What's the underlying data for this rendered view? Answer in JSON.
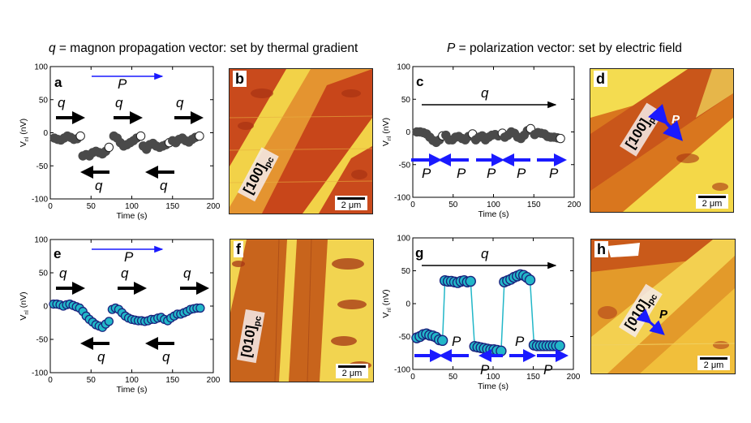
{
  "headers": {
    "q": {
      "symbol": "q",
      "text": " = magnon propagation vector: set by thermal gradient"
    },
    "p": {
      "symbol": "P",
      "text": " = polarization vector: set by electric field"
    }
  },
  "axes_common": {
    "xlabel": "Time (s)",
    "ylabel": "V",
    "ylabel_sub": "nl",
    "ylabel_unit": " (nV)",
    "xticks": [
      "0",
      "50",
      "100",
      "150",
      "200"
    ],
    "yticks": [
      "100",
      "50",
      "0",
      "-50",
      "-100"
    ]
  },
  "colors": {
    "dark_series": "#4a4a4a",
    "cyan_series": "#22b7c8",
    "cyan_edge": "#1a237e",
    "blue_arrow": "#1a1aff",
    "black_arrow": "#000000",
    "micro_bright": "#f6e24a",
    "micro_dark": "#c9461a"
  },
  "panel_labels": {
    "a": "a",
    "b": "b",
    "c": "c",
    "d": "d",
    "e": "e",
    "f": "f",
    "g": "g",
    "h": "h"
  },
  "vector_labels": {
    "q": "q",
    "P": "P"
  },
  "micrographs": {
    "b": {
      "orientation": "[100]",
      "sub": "pc",
      "scale": "2 μm"
    },
    "d": {
      "orientation": "[100]",
      "sub": "pc",
      "scale": "2 μm",
      "p_label": "P"
    },
    "f": {
      "orientation": "[010]",
      "sub": "pc",
      "scale": "2 μm"
    },
    "h": {
      "orientation": "[010]",
      "sub": "pc",
      "scale": "2 μm",
      "p_label": "P"
    }
  },
  "chart_data": [
    {
      "panel": "a",
      "type": "scatter",
      "xlabel": "Time (s)",
      "ylabel": "Vnl (nV)",
      "xlim": [
        0,
        200
      ],
      "ylim": [
        -100,
        100
      ],
      "segments": [
        [
          [
            5,
            -8
          ],
          [
            9,
            -10
          ],
          [
            13,
            -11
          ],
          [
            17,
            -8
          ],
          [
            21,
            -5
          ],
          [
            25,
            -7
          ],
          [
            29,
            -10
          ],
          [
            33,
            -9
          ],
          [
            37,
            -5
          ]
        ],
        [
          [
            40,
            -35
          ],
          [
            44,
            -33
          ],
          [
            48,
            -35
          ],
          [
            52,
            -30
          ],
          [
            56,
            -28
          ],
          [
            60,
            -30
          ],
          [
            64,
            -32
          ],
          [
            68,
            -28
          ],
          [
            72,
            -22
          ]
        ],
        [
          [
            78,
            -5
          ],
          [
            82,
            -8
          ],
          [
            86,
            -15
          ],
          [
            90,
            -20
          ],
          [
            94,
            -18
          ],
          [
            98,
            -15
          ],
          [
            102,
            -12
          ],
          [
            106,
            -8
          ],
          [
            111,
            -5
          ]
        ],
        [
          [
            114,
            -20
          ],
          [
            118,
            -25
          ],
          [
            122,
            -18
          ],
          [
            126,
            -16
          ],
          [
            130,
            -20
          ],
          [
            134,
            -22
          ],
          [
            138,
            -20
          ],
          [
            142,
            -18
          ],
          [
            146,
            -15
          ]
        ],
        [
          [
            150,
            -12
          ],
          [
            154,
            -15
          ],
          [
            158,
            -10
          ],
          [
            162,
            -8
          ],
          [
            166,
            -12
          ],
          [
            170,
            -14
          ],
          [
            174,
            -10
          ],
          [
            178,
            -7
          ],
          [
            183,
            -5
          ]
        ]
      ]
    },
    {
      "panel": "c",
      "type": "scatter",
      "xlabel": "Time (s)",
      "ylabel": "Vnl (nV)",
      "xlim": [
        0,
        200
      ],
      "ylim": [
        -100,
        100
      ],
      "segments": [
        [
          [
            5,
            0
          ],
          [
            9,
            0
          ],
          [
            13,
            -1
          ],
          [
            17,
            -3
          ],
          [
            21,
            -8
          ],
          [
            25,
            -13
          ],
          [
            29,
            -16
          ],
          [
            33,
            -12
          ],
          [
            37,
            -6
          ]
        ],
        [
          [
            41,
            -5
          ],
          [
            45,
            -12
          ],
          [
            49,
            -12
          ],
          [
            53,
            -8
          ],
          [
            57,
            -7
          ],
          [
            61,
            -10
          ],
          [
            65,
            -12
          ],
          [
            69,
            -7
          ],
          [
            74,
            -3
          ]
        ],
        [
          [
            78,
            -12
          ],
          [
            82,
            -8
          ],
          [
            86,
            -6
          ],
          [
            90,
            -12
          ],
          [
            94,
            -8
          ],
          [
            98,
            -5
          ],
          [
            102,
            -4
          ],
          [
            106,
            -6
          ],
          [
            111,
            -2
          ]
        ],
        [
          [
            114,
            -8
          ],
          [
            118,
            -5
          ],
          [
            122,
            0
          ],
          [
            126,
            -2
          ],
          [
            130,
            -8
          ],
          [
            134,
            -10
          ],
          [
            138,
            -5
          ],
          [
            142,
            2
          ],
          [
            146,
            5
          ]
        ],
        [
          [
            151,
            -4
          ],
          [
            155,
            -1
          ],
          [
            159,
            -2
          ],
          [
            163,
            -3
          ],
          [
            167,
            -7
          ],
          [
            171,
            -8
          ],
          [
            175,
            -8
          ],
          [
            179,
            -9
          ],
          [
            183,
            -10
          ]
        ]
      ]
    },
    {
      "panel": "e",
      "type": "scatter",
      "xlabel": "Time (s)",
      "ylabel": "Vnl (nV)",
      "xlim": [
        0,
        200
      ],
      "ylim": [
        -100,
        100
      ],
      "segments": [
        [
          [
            4,
            3
          ],
          [
            8,
            3
          ],
          [
            12,
            2
          ],
          [
            16,
            0
          ],
          [
            20,
            2
          ],
          [
            24,
            3
          ],
          [
            28,
            1
          ],
          [
            32,
            -1
          ],
          [
            36,
            -3
          ],
          [
            40,
            -8
          ],
          [
            44,
            -15
          ],
          [
            48,
            -20
          ],
          [
            52,
            -24
          ],
          [
            56,
            -28
          ],
          [
            60,
            -30
          ],
          [
            64,
            -32
          ],
          [
            68,
            -27
          ],
          [
            72,
            -23
          ]
        ],
        [
          [
            76,
            -5
          ],
          [
            80,
            -3
          ],
          [
            84,
            -5
          ],
          [
            88,
            -10
          ],
          [
            92,
            -15
          ],
          [
            96,
            -18
          ],
          [
            100,
            -20
          ],
          [
            104,
            -21
          ],
          [
            108,
            -22
          ],
          [
            112,
            -22
          ],
          [
            116,
            -23
          ],
          [
            120,
            -22
          ],
          [
            124,
            -20
          ],
          [
            128,
            -20
          ],
          [
            132,
            -18
          ],
          [
            136,
            -17
          ],
          [
            140,
            -20
          ],
          [
            144,
            -22
          ],
          [
            148,
            -18
          ],
          [
            152,
            -15
          ],
          [
            156,
            -12
          ],
          [
            160,
            -12
          ],
          [
            164,
            -10
          ],
          [
            168,
            -8
          ],
          [
            172,
            -5
          ],
          [
            176,
            -4
          ],
          [
            180,
            -3
          ],
          [
            184,
            -3
          ]
        ]
      ]
    },
    {
      "panel": "g",
      "type": "scatter",
      "xlabel": "Time (s)",
      "ylabel": "Vnl (nV)",
      "xlim": [
        0,
        200
      ],
      "ylim": [
        -100,
        100
      ],
      "segments": [
        [
          [
            5,
            -52
          ],
          [
            9,
            -50
          ],
          [
            13,
            -47
          ],
          [
            17,
            -46
          ],
          [
            21,
            -48
          ],
          [
            25,
            -49
          ],
          [
            29,
            -51
          ],
          [
            33,
            -55
          ],
          [
            37,
            -56
          ]
        ],
        [
          [
            40,
            35
          ],
          [
            44,
            34
          ],
          [
            48,
            34
          ],
          [
            52,
            33
          ],
          [
            56,
            32
          ],
          [
            60,
            34
          ],
          [
            64,
            35
          ],
          [
            68,
            33
          ],
          [
            72,
            34
          ]
        ],
        [
          [
            77,
            -65
          ],
          [
            81,
            -66
          ],
          [
            85,
            -67
          ],
          [
            89,
            -68
          ],
          [
            93,
            -69
          ],
          [
            97,
            -70
          ],
          [
            101,
            -70
          ],
          [
            105,
            -71
          ],
          [
            110,
            -72
          ]
        ],
        [
          [
            114,
            33
          ],
          [
            118,
            35
          ],
          [
            122,
            37
          ],
          [
            126,
            40
          ],
          [
            130,
            42
          ],
          [
            134,
            44
          ],
          [
            138,
            43
          ],
          [
            142,
            40
          ],
          [
            146,
            36
          ]
        ],
        [
          [
            151,
            -63
          ],
          [
            155,
            -64
          ],
          [
            159,
            -64
          ],
          [
            163,
            -64
          ],
          [
            167,
            -64
          ],
          [
            171,
            -64
          ],
          [
            175,
            -64
          ],
          [
            179,
            -64
          ],
          [
            183,
            -64
          ]
        ]
      ]
    }
  ]
}
